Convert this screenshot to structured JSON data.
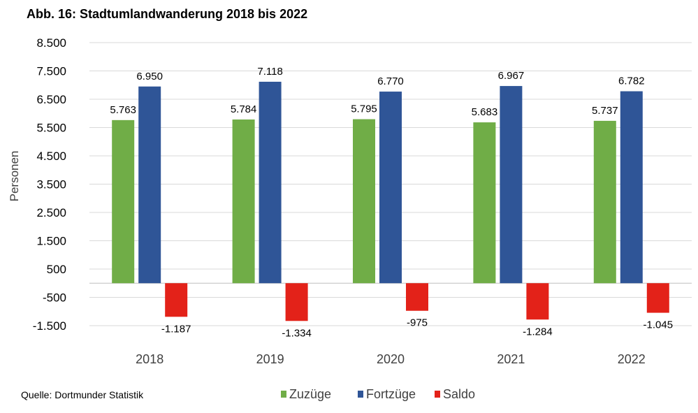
{
  "chart_data": {
    "type": "bar",
    "title": "Abb. 16:  Stadtumlandwanderung 2018 bis 2022",
    "ylabel": "Personen",
    "ylim": [
      -1500,
      8500
    ],
    "yticks": [
      8500,
      7500,
      6500,
      5500,
      4500,
      3500,
      2500,
      1500,
      500,
      -500,
      -1500
    ],
    "ytick_labels": [
      "8.500",
      "7.500",
      "6.500",
      "5.500",
      "4.500",
      "3.500",
      "2.500",
      "1.500",
      "500",
      "-500",
      "-1.500"
    ],
    "grid": true,
    "legend_position": "bottom",
    "categories": [
      "2018",
      "2019",
      "2020",
      "2021",
      "2022"
    ],
    "series": [
      {
        "name": "Zuzüge",
        "color": "#70AD47",
        "values": [
          5763,
          5784,
          5795,
          5683,
          5737
        ],
        "labels": [
          "5.763",
          "5.784",
          "5.795",
          "5.683",
          "5.737"
        ]
      },
      {
        "name": "Fortzüge",
        "color": "#2F5597",
        "values": [
          6950,
          7118,
          6770,
          6967,
          6782
        ],
        "labels": [
          "6.950",
          "7.118",
          "6.770",
          "6.967",
          "6.782"
        ]
      },
      {
        "name": "Saldo",
        "color": "#E32219",
        "values": [
          -1187,
          -1334,
          -975,
          -1284,
          -1045
        ],
        "labels": [
          "-1.187",
          "-1.334",
          "-975",
          "-1.284",
          "-1.045"
        ]
      }
    ]
  },
  "source": "Quelle: Dortmunder Statistik"
}
